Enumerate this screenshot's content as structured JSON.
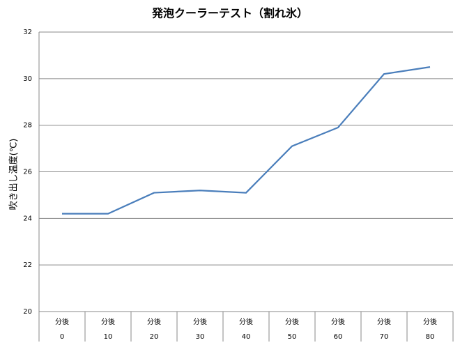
{
  "chart_data": {
    "type": "line",
    "title": "発泡クーラーテスト（割れ氷）",
    "y_label": "吹き出し温度(℃)",
    "categories": [
      [
        "分後",
        "0"
      ],
      [
        "分後",
        "10"
      ],
      [
        "分後",
        "20"
      ],
      [
        "分後",
        "30"
      ],
      [
        "分後",
        "40"
      ],
      [
        "分後",
        "50"
      ],
      [
        "分後",
        "60"
      ],
      [
        "分後",
        "70"
      ],
      [
        "分後",
        "80"
      ]
    ],
    "values": [
      24.2,
      24.2,
      25.1,
      25.2,
      25.1,
      27.1,
      27.9,
      30.2,
      30.5
    ],
    "color": "#4a7ebb",
    "ylim": [
      20,
      32
    ],
    "yticks": [
      20,
      22,
      24,
      26,
      28,
      30,
      32
    ],
    "grid": true
  }
}
